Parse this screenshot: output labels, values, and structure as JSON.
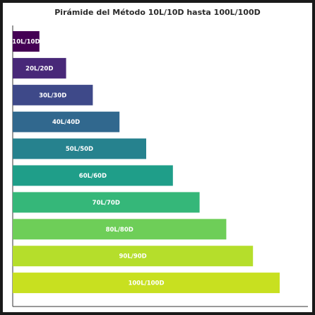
{
  "chart_data": {
    "type": "bar",
    "orientation": "horizontal",
    "title": "Pirámide del Método 10L/10D hasta 100L/100D",
    "xlabel": "",
    "ylabel": "",
    "categories": [
      "10L/10D",
      "20L/20D",
      "30L/30D",
      "40L/40D",
      "50L/50D",
      "60L/60D",
      "70L/70D",
      "80L/80D",
      "90L/90D",
      "100L/100D"
    ],
    "values": [
      10,
      20,
      30,
      40,
      50,
      60,
      70,
      80,
      90,
      100
    ],
    "labels": [
      "10L/10D",
      "20L/20D",
      "30L/30D",
      "40L/40D",
      "50L/50D",
      "60L/60D",
      "70L/70D",
      "80L/80D",
      "90L/90D",
      "100L/100D"
    ],
    "colors": [
      "#440154",
      "#482878",
      "#3e4989",
      "#31688e",
      "#26828e",
      "#1f9e89",
      "#35b779",
      "#6ece58",
      "#b5de2b",
      "#c8e020"
    ],
    "xlim": [
      0,
      110
    ],
    "grid": false,
    "axis_ticks": false
  }
}
